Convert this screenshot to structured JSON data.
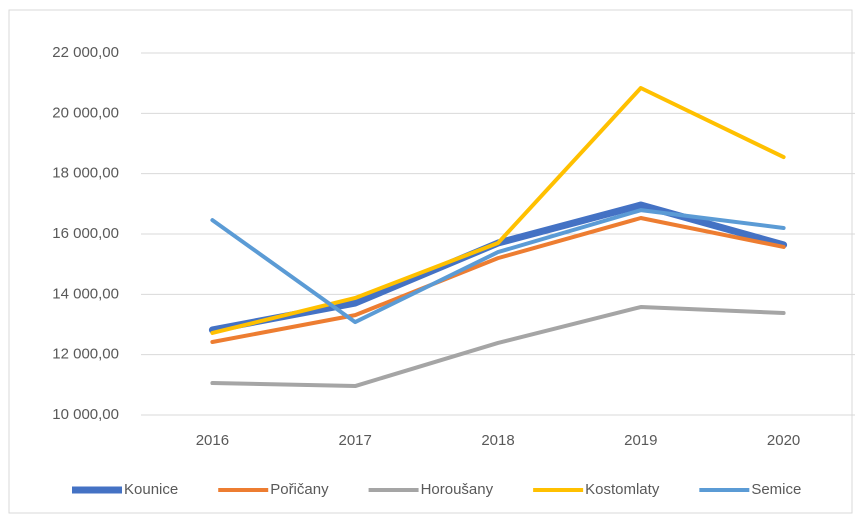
{
  "chart_data": {
    "type": "line",
    "categories": [
      "2016",
      "2017",
      "2018",
      "2019",
      "2020"
    ],
    "series": [
      {
        "name": "Kounice",
        "color": "#4472c4",
        "values": [
          12820,
          13710,
          15700,
          16960,
          15640
        ]
      },
      {
        "name": "Pořičany",
        "color": "#ed7d31",
        "values": [
          12420,
          13310,
          15200,
          16530,
          15570
        ]
      },
      {
        "name": "Horoušany",
        "color": "#a5a5a5",
        "values": [
          11060,
          10960,
          12390,
          13580,
          13380
        ]
      },
      {
        "name": "Kostomlaty",
        "color": "#ffc000",
        "values": [
          12720,
          13880,
          15700,
          20840,
          18550
        ]
      },
      {
        "name": "Semice",
        "color": "#5b9bd5",
        "values": [
          16460,
          13080,
          15400,
          16790,
          16200
        ]
      }
    ],
    "ylim": [
      10000,
      22000
    ],
    "yticks": [
      {
        "value": 10000,
        "label": "10 000,00"
      },
      {
        "value": 12000,
        "label": "12 000,00"
      },
      {
        "value": 14000,
        "label": "14 000,00"
      },
      {
        "value": 16000,
        "label": "16 000,00"
      },
      {
        "value": 18000,
        "label": "18 000,00"
      },
      {
        "value": 20000,
        "label": "20 000,00"
      },
      {
        "value": 22000,
        "label": "22 000,00"
      }
    ],
    "grid": true,
    "legend": "bottom"
  }
}
